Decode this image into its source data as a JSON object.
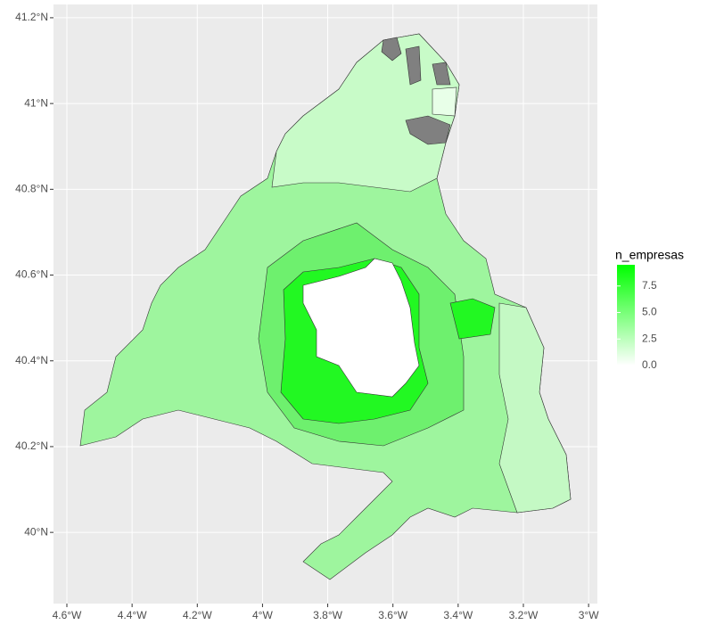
{
  "chart_data": {
    "type": "map",
    "xlim": [
      -4.641,
      -2.973
    ],
    "ylim": [
      39.834,
      41.231
    ],
    "xticks": [
      {
        "value": -4.6,
        "label": "4.6°W"
      },
      {
        "value": -4.4,
        "label": "4.4°W"
      },
      {
        "value": -4.2,
        "label": "4.2°W"
      },
      {
        "value": -4.0,
        "label": "4°W"
      },
      {
        "value": -3.8,
        "label": "3.8°W"
      },
      {
        "value": -3.6,
        "label": "3.6°W"
      },
      {
        "value": -3.4,
        "label": "3.4°W"
      },
      {
        "value": -3.2,
        "label": "3.2°W"
      },
      {
        "value": -3.0,
        "label": "3°W"
      }
    ],
    "yticks": [
      {
        "value": 40.0,
        "label": "40°N"
      },
      {
        "value": 40.2,
        "label": "40.2°N"
      },
      {
        "value": 40.4,
        "label": "40.4°N"
      },
      {
        "value": 40.6,
        "label": "40.6°N"
      },
      {
        "value": 40.8,
        "label": "40.8°N"
      },
      {
        "value": 41.0,
        "label": "41°N"
      },
      {
        "value": 41.2,
        "label": "41.2°N"
      }
    ],
    "grid": true,
    "legend": {
      "title": "n_empresas",
      "lim": [
        0,
        9.5
      ],
      "low_color": "#ffffff",
      "high_color": "#00ff00",
      "ticks": [
        {
          "value": 0,
          "label": "0.0"
        },
        2.5,
        {
          "value": 5,
          "label": "5.0"
        },
        7.5
      ]
    }
  }
}
